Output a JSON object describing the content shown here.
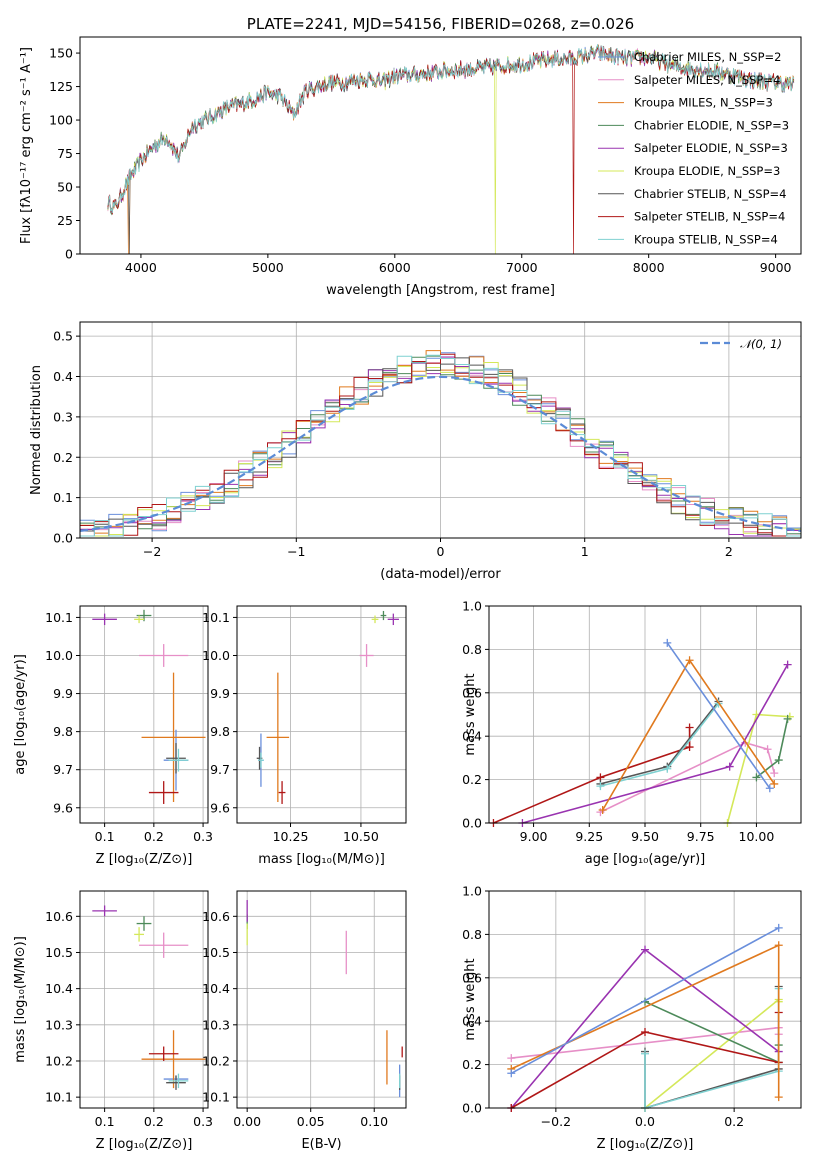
{
  "colors": {
    "chabrier_miles": "#6a8fdc",
    "salpeter_miles": "#e68fc7",
    "kroupa_miles": "#e07a1f",
    "chabrier_elodie": "#4d8a5a",
    "salpeter_elodie": "#9933b0",
    "kroupa_elodie": "#d4e85a",
    "chabrier_stelib": "#555555",
    "salpeter_stelib": "#b01717",
    "kroupa_stelib": "#7fd1d1",
    "normal": "#5b8bd6"
  },
  "chart_data": [
    {
      "id": "spectrum",
      "type": "line",
      "title": "PLATE=2241, MJD=54156, FIBERID=0268, z=0.026",
      "xlabel": "wavelength [Angstrom, rest frame]",
      "ylabel": "Flux [fλ10⁻¹⁷ erg cm⁻² s⁻¹ A⁻¹]",
      "xlim": [
        3520,
        9200
      ],
      "ylim": [
        0,
        162
      ],
      "xticks": [
        "4000",
        "5000",
        "6000",
        "7000",
        "8000",
        "9000"
      ],
      "yticks": [
        "0",
        "25",
        "50",
        "75",
        "100",
        "125",
        "150"
      ],
      "continuum": {
        "x": [
          3740,
          3800,
          3900,
          4000,
          4100,
          4200,
          4300,
          4400,
          4500,
          4600,
          4700,
          4800,
          4900,
          5000,
          5100,
          5200,
          5300,
          5400,
          5500,
          5600,
          5700,
          5800,
          5900,
          6000,
          6200,
          6400,
          6600,
          6800,
          7000,
          7200,
          7400,
          7600,
          7800,
          8000,
          8200,
          8400,
          8600,
          8800,
          9000,
          9150
        ],
        "y": [
          38,
          35,
          55,
          70,
          80,
          88,
          72,
          95,
          100,
          105,
          110,
          112,
          116,
          120,
          118,
          104,
          122,
          125,
          128,
          128,
          130,
          131,
          128,
          133,
          134,
          137,
          138,
          140,
          142,
          145,
          146,
          150,
          146,
          147,
          140,
          138,
          135,
          130,
          128,
          126
        ]
      },
      "series": [
        {
          "name": "Chabrier MILES, N_SSP=2",
          "color_key": "chabrier_miles"
        },
        {
          "name": "Salpeter MILES, N_SSP=4",
          "color_key": "salpeter_miles"
        },
        {
          "name": "Kroupa MILES, N_SSP=3",
          "color_key": "kroupa_miles"
        },
        {
          "name": "Chabrier ELODIE, N_SSP=3",
          "color_key": "chabrier_elodie"
        },
        {
          "name": "Salpeter ELODIE, N_SSP=3",
          "color_key": "salpeter_elodie"
        },
        {
          "name": "Kroupa ELODIE, N_SSP=3",
          "color_key": "kroupa_elodie"
        },
        {
          "name": "Chabrier STELIB, N_SSP=4",
          "color_key": "chabrier_stelib"
        },
        {
          "name": "Salpeter STELIB, N_SSP=4",
          "color_key": "salpeter_stelib"
        },
        {
          "name": "Kroupa STELIB, N_SSP=4",
          "color_key": "kroupa_stelib"
        }
      ]
    },
    {
      "id": "residuals",
      "type": "bar",
      "xlabel": "(data-model)/error",
      "ylabel": "Normed distribution",
      "xlim": [
        -2.5,
        2.5
      ],
      "ylim": [
        0,
        0.535
      ],
      "xticks": [
        "−2",
        "−1",
        "0",
        "1",
        "2"
      ],
      "yticks": [
        "0.0",
        "0.1",
        "0.2",
        "0.3",
        "0.4",
        "0.5"
      ],
      "legend": "𝒩(0, 1)",
      "legend_position": "top-right",
      "bin_width": 0.1
    },
    {
      "id": "age_vs_Z",
      "type": "scatter",
      "xlabel": "Z [log₁₀(Z/Z⊙)]",
      "ylabel": "age  [log₁₀(age/yr)]",
      "xlim": [
        0.05,
        0.31
      ],
      "ylim": [
        9.56,
        10.13
      ],
      "xticks": [
        "0.1",
        "0.2",
        "0.3"
      ],
      "yticks": [
        "9.6",
        "9.7",
        "9.8",
        "9.9",
        "10.0",
        "10.1"
      ],
      "points": [
        {
          "color_key": "chabrier_miles",
          "x": 0.245,
          "y": 9.725,
          "xerr": 0.025,
          "yerr": 0.08
        },
        {
          "color_key": "salpeter_miles",
          "x": 0.22,
          "y": 10.0,
          "xerr": 0.05,
          "yerr": 0.03
        },
        {
          "color_key": "kroupa_miles",
          "x": 0.24,
          "y": 9.785,
          "xerr": 0.065,
          "yerr": 0.17
        },
        {
          "color_key": "chabrier_elodie",
          "x": 0.18,
          "y": 10.105,
          "xerr": 0.015,
          "yerr": 0.015
        },
        {
          "color_key": "salpeter_elodie",
          "x": 0.1,
          "y": 10.095,
          "xerr": 0.025,
          "yerr": 0.015
        },
        {
          "color_key": "kroupa_elodie",
          "x": 0.17,
          "y": 10.095,
          "xerr": 0.01,
          "yerr": 0.01
        },
        {
          "color_key": "chabrier_stelib",
          "x": 0.245,
          "y": 9.73,
          "xerr": 0.02,
          "yerr": 0.04
        },
        {
          "color_key": "salpeter_stelib",
          "x": 0.22,
          "y": 9.64,
          "xerr": 0.03,
          "yerr": 0.03
        },
        {
          "color_key": "kroupa_stelib",
          "x": 0.25,
          "y": 9.725,
          "xerr": 0.02,
          "yerr": 0.03
        }
      ]
    },
    {
      "id": "age_vs_mass",
      "type": "scatter",
      "xlabel": "mass [log₁₀(M/M⊙)]",
      "ylabel": "",
      "xlim": [
        10.06,
        10.66
      ],
      "ylim": [
        9.56,
        10.13
      ],
      "xticks": [
        "10.25",
        "10.50"
      ],
      "yticks": [
        "9.6",
        "9.7",
        "9.8",
        "9.9",
        "10.0",
        "10.1"
      ],
      "points": [
        {
          "color_key": "chabrier_miles",
          "x": 10.145,
          "y": 9.725,
          "xerr": 0.01,
          "yerr": 0.07
        },
        {
          "color_key": "salpeter_miles",
          "x": 10.52,
          "y": 10.0,
          "xerr": 0.025,
          "yerr": 0.03
        },
        {
          "color_key": "kroupa_miles",
          "x": 10.205,
          "y": 9.785,
          "xerr": 0.04,
          "yerr": 0.17
        },
        {
          "color_key": "chabrier_elodie",
          "x": 10.58,
          "y": 10.105,
          "xerr": 0.01,
          "yerr": 0.012
        },
        {
          "color_key": "salpeter_elodie",
          "x": 10.615,
          "y": 10.095,
          "xerr": 0.02,
          "yerr": 0.015
        },
        {
          "color_key": "kroupa_elodie",
          "x": 10.55,
          "y": 10.095,
          "xerr": 0.012,
          "yerr": 0.01
        },
        {
          "color_key": "chabrier_stelib",
          "x": 10.14,
          "y": 9.73,
          "xerr": 0.01,
          "yerr": 0.03
        },
        {
          "color_key": "salpeter_stelib",
          "x": 10.22,
          "y": 9.64,
          "xerr": 0.012,
          "yerr": 0.03
        },
        {
          "color_key": "kroupa_stelib",
          "x": 10.145,
          "y": 9.725,
          "xerr": 0.01,
          "yerr": 0.02
        }
      ]
    },
    {
      "id": "weight_vs_age",
      "type": "line",
      "xlabel": "age  [log₁₀(age/yr)]",
      "ylabel": "mass weight",
      "xlim": [
        8.8,
        10.2
      ],
      "ylim": [
        0,
        1
      ],
      "xticks": [
        "9.00",
        "9.25",
        "9.50",
        "9.75",
        "10.00"
      ],
      "yticks": [
        "0.0",
        "0.2",
        "0.4",
        "0.6",
        "0.8",
        "1.0"
      ],
      "series": [
        {
          "color_key": "salpeter_miles",
          "x": [
            9.3,
            9.95,
            10.05,
            10.08
          ],
          "y": [
            0.05,
            0.37,
            0.34,
            0.23
          ]
        },
        {
          "color_key": "kroupa_elodie",
          "x": [
            9.87,
            10.0,
            10.15
          ],
          "y": [
            0.0,
            0.5,
            0.49
          ]
        },
        {
          "color_key": "chabrier_elodie",
          "x": [
            10.0,
            10.1,
            10.14
          ],
          "y": [
            0.21,
            0.29,
            0.48
          ]
        },
        {
          "color_key": "salpeter_elodie",
          "x": [
            8.95,
            9.88,
            10.14
          ],
          "y": [
            0.0,
            0.26,
            0.73
          ]
        },
        {
          "color_key": "salpeter_stelib",
          "x": [
            8.82,
            9.3,
            9.7,
            9.7
          ],
          "y": [
            0.0,
            0.21,
            0.35,
            0.44
          ]
        },
        {
          "color_key": "chabrier_stelib",
          "x": [
            9.3,
            9.6,
            9.83
          ],
          "y": [
            0.18,
            0.26,
            0.56
          ]
        },
        {
          "color_key": "kroupa_stelib",
          "x": [
            9.3,
            9.6,
            9.83
          ],
          "y": [
            0.17,
            0.25,
            0.55
          ]
        },
        {
          "color_key": "kroupa_miles",
          "x": [
            9.31,
            9.7,
            10.08
          ],
          "y": [
            0.06,
            0.75,
            0.18
          ]
        },
        {
          "color_key": "chabrier_miles",
          "x": [
            9.6,
            10.06
          ],
          "y": [
            0.83,
            0.16
          ]
        }
      ]
    },
    {
      "id": "mass_vs_Z",
      "type": "scatter",
      "xlabel": "Z [log₁₀(Z/Z⊙)]",
      "ylabel": "mass [log₁₀(M/M⊙)]",
      "xlim": [
        0.05,
        0.31
      ],
      "ylim": [
        10.07,
        10.67
      ],
      "xticks": [
        "0.1",
        "0.2",
        "0.3"
      ],
      "yticks": [
        "10.1",
        "10.2",
        "10.3",
        "10.4",
        "10.5",
        "10.6"
      ],
      "points": [
        {
          "color_key": "chabrier_miles",
          "x": 0.245,
          "y": 10.15,
          "xerr": 0.025,
          "yerr": 0.01
        },
        {
          "color_key": "salpeter_miles",
          "x": 0.22,
          "y": 10.52,
          "xerr": 0.05,
          "yerr": 0.035
        },
        {
          "color_key": "kroupa_miles",
          "x": 0.24,
          "y": 10.205,
          "xerr": 0.065,
          "yerr": 0.08
        },
        {
          "color_key": "chabrier_elodie",
          "x": 0.18,
          "y": 10.58,
          "xerr": 0.015,
          "yerr": 0.02
        },
        {
          "color_key": "salpeter_elodie",
          "x": 0.1,
          "y": 10.615,
          "xerr": 0.025,
          "yerr": 0.015
        },
        {
          "color_key": "kroupa_elodie",
          "x": 0.17,
          "y": 10.55,
          "xerr": 0.01,
          "yerr": 0.02
        },
        {
          "color_key": "chabrier_stelib",
          "x": 0.245,
          "y": 10.14,
          "xerr": 0.02,
          "yerr": 0.02
        },
        {
          "color_key": "salpeter_stelib",
          "x": 0.22,
          "y": 10.22,
          "xerr": 0.03,
          "yerr": 0.02
        },
        {
          "color_key": "kroupa_stelib",
          "x": 0.25,
          "y": 10.145,
          "xerr": 0.02,
          "yerr": 0.02
        }
      ]
    },
    {
      "id": "mass_vs_ebv",
      "type": "scatter",
      "xlabel": "E(B-V)",
      "ylabel": "",
      "xlim": [
        -0.008,
        0.125
      ],
      "ylim": [
        10.07,
        10.67
      ],
      "xticks": [
        "0.00",
        "0.05",
        "0.10"
      ],
      "yticks": [
        "10.1",
        "10.2",
        "10.3",
        "10.4",
        "10.5",
        "10.6"
      ],
      "points": [
        {
          "color_key": "chabrier_miles",
          "x": 0.12,
          "y": 10.145,
          "xerr": 0,
          "yerr": 0.045
        },
        {
          "color_key": "salpeter_miles",
          "x": 0.078,
          "y": 10.5,
          "xerr": 0,
          "yerr": 0.06
        },
        {
          "color_key": "kroupa_miles",
          "x": 0.11,
          "y": 10.21,
          "xerr": 0,
          "yerr": 0.075
        },
        {
          "color_key": "chabrier_elodie",
          "x": 0.0,
          "y": 10.585,
          "xerr": 0,
          "yerr": 0.02
        },
        {
          "color_key": "salpeter_elodie",
          "x": 0.0,
          "y": 10.615,
          "xerr": 0,
          "yerr": 0.03
        },
        {
          "color_key": "kroupa_elodie",
          "x": 0.0,
          "y": 10.55,
          "xerr": 0,
          "yerr": 0.03
        },
        {
          "color_key": "chabrier_stelib",
          "x": 0.12,
          "y": 10.14,
          "xerr": 0,
          "yerr": 0.02
        },
        {
          "color_key": "salpeter_stelib",
          "x": 0.122,
          "y": 10.225,
          "xerr": 0,
          "yerr": 0.015
        },
        {
          "color_key": "kroupa_stelib",
          "x": 0.12,
          "y": 10.145,
          "xerr": 0,
          "yerr": 0.02
        }
      ]
    },
    {
      "id": "weight_vs_Z",
      "type": "line",
      "xlabel": "Z [log₁₀(Z/Z⊙)]",
      "ylabel": "mass weight",
      "xlim": [
        -0.35,
        0.35
      ],
      "ylim": [
        0,
        1
      ],
      "xticks": [
        "−0.2",
        "0.0",
        "0.2"
      ],
      "yticks": [
        "0.0",
        "0.2",
        "0.4",
        "0.6",
        "0.8",
        "1.0"
      ],
      "series": [
        {
          "color_key": "salpeter_miles",
          "x": [
            -0.3,
            0.3,
            0.3
          ],
          "y": [
            0.23,
            0.37,
            0.34
          ]
        },
        {
          "color_key": "kroupa_elodie",
          "x": [
            0.0,
            0.3,
            0.3
          ],
          "y": [
            0.0,
            0.5,
            0.49
          ]
        },
        {
          "color_key": "chabrier_elodie",
          "x": [
            0.0,
            0.3,
            0.3
          ],
          "y": [
            0.49,
            0.21,
            0.29
          ]
        },
        {
          "color_key": "salpeter_elodie",
          "x": [
            -0.3,
            0.0,
            0.3
          ],
          "y": [
            0.0,
            0.73,
            0.26
          ]
        },
        {
          "color_key": "salpeter_stelib",
          "x": [
            -0.3,
            0.0,
            0.3,
            0.3
          ],
          "y": [
            0.0,
            0.35,
            0.21,
            0.44
          ]
        },
        {
          "color_key": "chabrier_stelib",
          "x": [
            0.0,
            0.0,
            0.3,
            0.3
          ],
          "y": [
            0.26,
            0.0,
            0.18,
            0.56
          ]
        },
        {
          "color_key": "kroupa_stelib",
          "x": [
            0.0,
            0.0,
            0.3,
            0.3
          ],
          "y": [
            0.25,
            0.0,
            0.17,
            0.55
          ]
        },
        {
          "color_key": "kroupa_miles",
          "x": [
            -0.3,
            0.3,
            0.3
          ],
          "y": [
            0.18,
            0.75,
            0.05
          ]
        },
        {
          "color_key": "chabrier_miles",
          "x": [
            -0.3,
            0.3
          ],
          "y": [
            0.16,
            0.83
          ]
        }
      ]
    }
  ]
}
